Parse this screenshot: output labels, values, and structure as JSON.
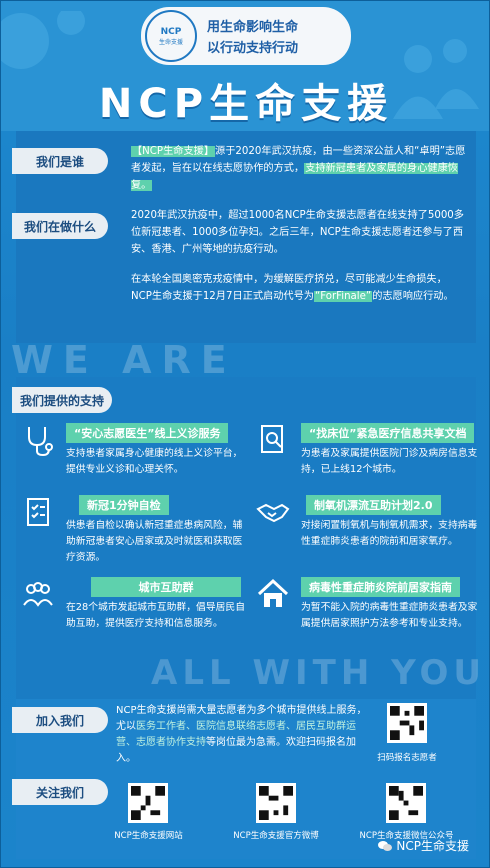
{
  "header": {
    "logo_text": "NCP",
    "logo_sub": "生命支援",
    "slogan_line1": "用生命影响生命",
    "slogan_line2": "以行动支持行动",
    "title": "NCP生命支援"
  },
  "about": {
    "label_who": "我们是谁",
    "label_what": "我们在做什么",
    "p1_hl1": "【NCP生命支援】",
    "p1_text1": "源于2020年武汉抗疫，由一些资深公益人和“卓明”志愿者发起，旨在以在线志愿协作的方式，",
    "p1_hl2": "支持新冠患者及家属的身心健康恢复。",
    "p2_text": "2020年武汉抗疫中，超过1000名NCP生命支援志愿者在线支持了5000多位新冠患者、1000多位孕妇。之后三年，NCP生命支援志愿者还参与了西安、香港、广州等地的抗疫行动。",
    "p3_text1": "在本轮全国奥密克戎疫情中，为缓解医疗挤兑，尽可能减少生命损失，NCP生命支援于12月7日正式启动代号为",
    "p3_hl": "“ForFinale”",
    "p3_text2": "的志愿响应行动。"
  },
  "deco": {
    "we_are": "WE ARE",
    "all_with_you": "ALL WITH YOU"
  },
  "services": {
    "label": "我们提供的支持",
    "items": [
      {
        "title": "“安心志愿医生”线上义诊服务",
        "desc": "支持患者家属身心健康的线上义诊平台，提供专业义诊和心理关怀。",
        "icon": "stethoscope-icon"
      },
      {
        "title": "“找床位”紧急医疗信息共享文档",
        "desc": "为患者及家属提供医院门诊及病房信息支持，已上线12个城市。",
        "icon": "document-search-icon"
      },
      {
        "title": "新冠1分钟自检",
        "desc": "供患者自检以确认新冠重症患病风险，辅助新冠患者安心居家或及时就医和获取医疗资源。",
        "icon": "checklist-icon"
      },
      {
        "title": "制氧机漂流互助计划2.0",
        "desc": "对接闲置制氧机与制氧机需求，支持病毒性重症肺炎患者的院前和居家氧疗。",
        "icon": "handshake-icon"
      },
      {
        "title": "城市互助群",
        "desc": "在28个城市发起城市互助群，倡导居民自助互助，提供医疗支持和信息服务。",
        "icon": "group-icon"
      },
      {
        "title": "病毒性重症肺炎院前居家指南",
        "desc": "为暂不能入院的病毒性重症肺炎患者及家属提供居家照护方法参考和专业支持。",
        "icon": "home-icon"
      }
    ]
  },
  "join": {
    "label": "加入我们",
    "text1": "NCP生命支援尚需大量志愿者为多个城市提供线上服务，尤以",
    "hl": "医务工作者、医院信息联络志愿者、居民互助群运营、志愿者协作支持",
    "text2": "等岗位最为急需。欢迎扫码报名加入。",
    "qr_caption": "扫码报名志愿者"
  },
  "follow": {
    "label": "关注我们",
    "qr": [
      {
        "caption": "NCP生命支援网站"
      },
      {
        "caption": "NCP生命支援官方微博"
      },
      {
        "caption": "NCP生命支援微信公众号"
      }
    ]
  },
  "watermark": "NCP生命支援"
}
